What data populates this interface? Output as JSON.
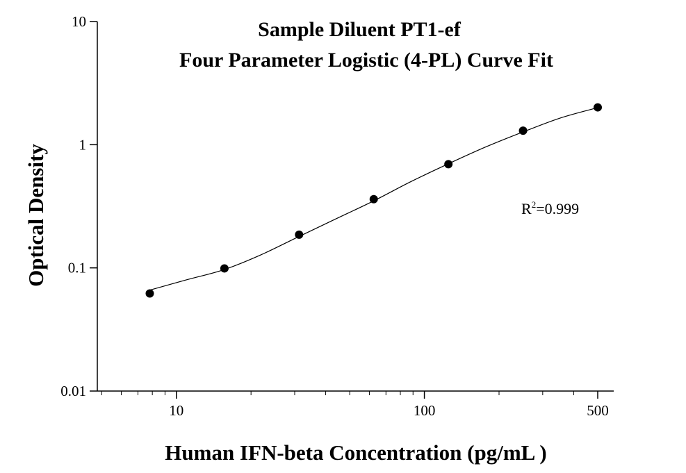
{
  "chart_data": {
    "type": "scatter",
    "title": "Sample Diluent PT1-ef",
    "subtitle": "Four Parameter Logistic (4-PL) Curve Fit",
    "x_label": "Human IFN-beta Concentration (pg/mL )",
    "y_label": "Optical Density",
    "x_scale": "log",
    "y_scale": "log",
    "xlim": [
      4.8,
      580
    ],
    "ylim": [
      0.01,
      10
    ],
    "xticks": [
      10,
      100,
      500
    ],
    "xminorticks": [
      5,
      6,
      7,
      8,
      9,
      20,
      30,
      40,
      50,
      60,
      70,
      80,
      90,
      200,
      300,
      400
    ],
    "yticks": [
      0.01,
      0.1,
      1,
      10
    ],
    "annotation": {
      "base": "R",
      "superscript": "2",
      "text": "=0.999"
    },
    "series": [
      {
        "type": "scatter",
        "color": "#000000",
        "x": [
          7.8125,
          15.625,
          31.25,
          62.5,
          125,
          250,
          500
        ],
        "values": [
          0.062,
          0.099,
          0.186,
          0.361,
          0.695,
          1.3,
          2.01
        ]
      },
      {
        "type": "line",
        "color": "#000000",
        "x": [
          7.8125,
          11,
          15.625,
          22,
          31.25,
          44,
          62.5,
          88,
          125,
          177,
          250,
          354,
          500
        ],
        "values": [
          0.066,
          0.08,
          0.097,
          0.128,
          0.18,
          0.25,
          0.35,
          0.5,
          0.7,
          0.96,
          1.27,
          1.65,
          2.0
        ]
      }
    ]
  }
}
